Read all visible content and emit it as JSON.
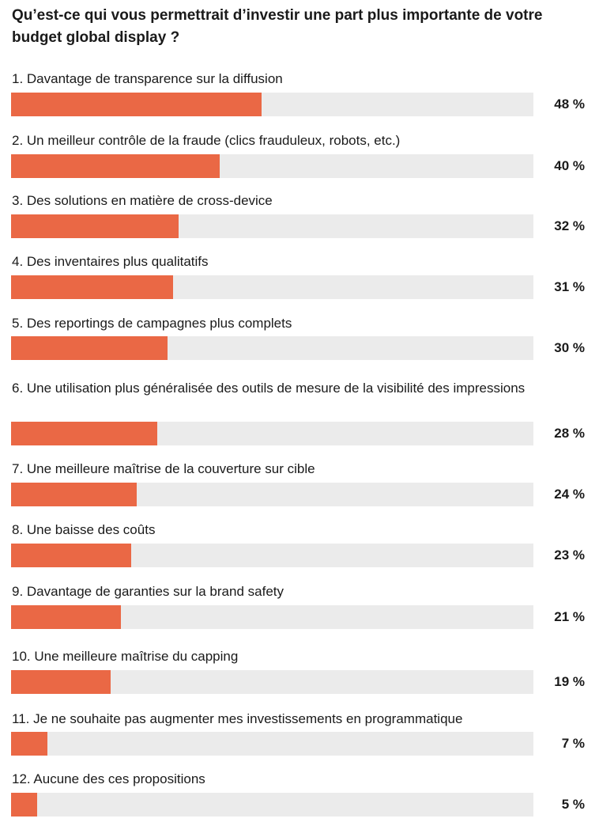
{
  "chart_data": {
    "type": "bar",
    "orientation": "horizontal",
    "title": "Qu’est-ce qui vous permettrait d’investir une part plus importante de votre budget global display ?",
    "xlim": [
      0,
      100
    ],
    "bar_color": "#ea6845",
    "track_color": "#ebebeb",
    "categories": [
      "1. Davantage de transparence sur la diffusion",
      "2. Un meilleur contrôle de la fraude (clics frauduleux, robots, etc.)",
      "3. Des solutions en matière de cross-device",
      "4. Des inventaires plus qualitatifs",
      "5. Des reportings de campagnes plus complets",
      "6. Une utilisation plus généralisée des outils de mesure de la visibilité des impressions",
      "7. Une meilleure maîtrise de la couverture sur cible",
      "8. Une baisse des coûts",
      "9. Davantage de garanties sur la brand safety",
      "10. Une meilleure maîtrise du capping",
      "11. Je ne souhaite pas augmenter mes investissements en programmatique",
      "12. Aucune des ces propositions"
    ],
    "values": [
      48,
      40,
      32,
      31,
      30,
      28,
      24,
      23,
      21,
      19,
      7,
      5
    ],
    "value_labels": [
      "48 %",
      "40 %",
      "32 %",
      "31 %",
      "30 %",
      "28 %",
      "24 %",
      "23 %",
      "21 %",
      "19 %",
      "7 %",
      "5 %"
    ]
  }
}
